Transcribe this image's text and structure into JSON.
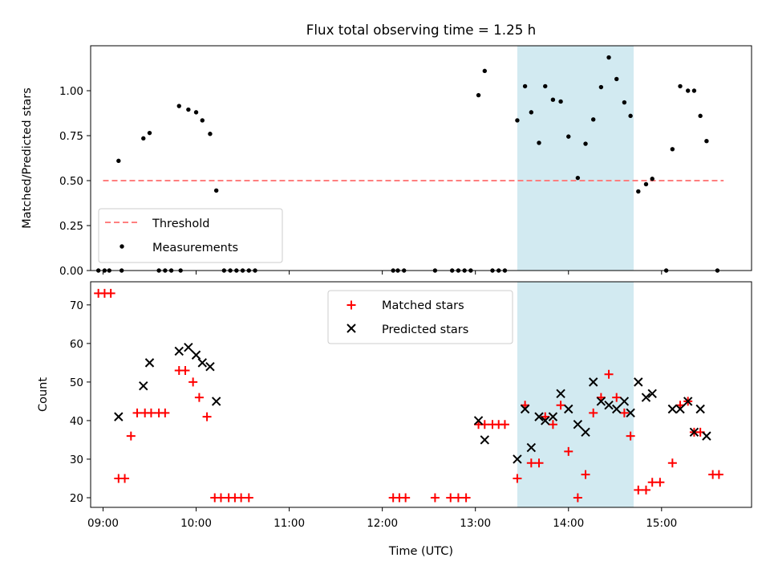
{
  "chart_data": [
    {
      "type": "scatter",
      "title": "Flux total observing time = 1.25 h",
      "xlabel": "",
      "ylabel": "Matched/Predicted stars",
      "xlim": [
        "08:52",
        "15:58"
      ],
      "ylim": [
        0,
        1.25
      ],
      "x_ticks": [
        "09:00",
        "10:00",
        "11:00",
        "12:00",
        "13:00",
        "14:00",
        "15:00"
      ],
      "y_ticks": [
        "0.00",
        "0.25",
        "0.50",
        "0.75",
        "1.00"
      ],
      "y_tick_values": [
        0,
        0.25,
        0.5,
        0.75,
        1.0
      ],
      "highlight_band": {
        "x_start": "13:27",
        "x_end": "14:42",
        "color": "#add8e6"
      },
      "legend_position": "lower-left",
      "grid": false,
      "threshold": {
        "name": "Threshold",
        "y": 0.5,
        "x_start": "09:00",
        "x_end": "15:40",
        "color": "#ff7f7f",
        "style": "dashed"
      },
      "series": [
        {
          "name": "Measurements",
          "marker": "dot",
          "color": "#000000",
          "points": [
            [
              "08:57",
              0
            ],
            [
              "09:01",
              0
            ],
            [
              "09:04",
              0
            ],
            [
              "09:12",
              0
            ],
            [
              "09:36",
              0
            ],
            [
              "09:40",
              0
            ],
            [
              "09:44",
              0
            ],
            [
              "09:50",
              0
            ],
            [
              "09:10",
              0.61
            ],
            [
              "09:26",
              0.735
            ],
            [
              "09:30",
              0.765
            ],
            [
              "09:49",
              0.915
            ],
            [
              "09:55",
              0.895
            ],
            [
              "10:00",
              0.88
            ],
            [
              "10:04",
              0.835
            ],
            [
              "10:09",
              0.76
            ],
            [
              "10:13",
              0.445
            ],
            [
              "10:18",
              0
            ],
            [
              "10:22",
              0
            ],
            [
              "10:26",
              0
            ],
            [
              "10:30",
              0
            ],
            [
              "10:34",
              0
            ],
            [
              "10:38",
              0
            ],
            [
              "12:07",
              0
            ],
            [
              "12:10",
              0
            ],
            [
              "12:14",
              0
            ],
            [
              "12:34",
              0
            ],
            [
              "12:45",
              0
            ],
            [
              "12:49",
              0
            ],
            [
              "12:53",
              0
            ],
            [
              "12:57",
              0
            ],
            [
              "13:02",
              0.975
            ],
            [
              "13:06",
              1.11
            ],
            [
              "13:11",
              0
            ],
            [
              "13:15",
              0
            ],
            [
              "13:19",
              0
            ],
            [
              "13:27",
              0.835
            ],
            [
              "13:32",
              1.025
            ],
            [
              "13:36",
              0.88
            ],
            [
              "13:41",
              0.71
            ],
            [
              "13:45",
              1.025
            ],
            [
              "13:50",
              0.95
            ],
            [
              "13:55",
              0.94
            ],
            [
              "14:00",
              0.745
            ],
            [
              "14:06",
              0.515
            ],
            [
              "14:11",
              0.705
            ],
            [
              "14:16",
              0.84
            ],
            [
              "14:21",
              1.02
            ],
            [
              "14:26",
              1.185
            ],
            [
              "14:31",
              1.065
            ],
            [
              "14:36",
              0.935
            ],
            [
              "14:40",
              0.86
            ],
            [
              "14:45",
              0.44
            ],
            [
              "14:50",
              0.48
            ],
            [
              "14:54",
              0.51
            ],
            [
              "15:03",
              0
            ],
            [
              "15:07",
              0.675
            ],
            [
              "15:12",
              1.025
            ],
            [
              "15:17",
              1.0
            ],
            [
              "15:21",
              1.0
            ],
            [
              "15:25",
              0.86
            ],
            [
              "15:29",
              0.72
            ],
            [
              "15:36",
              0
            ]
          ]
        }
      ]
    },
    {
      "type": "scatter",
      "title": "",
      "xlabel": "Time (UTC)",
      "ylabel": "Count",
      "xlim": [
        "08:52",
        "15:58"
      ],
      "ylim": [
        17.5,
        76
      ],
      "x_ticks": [
        "09:00",
        "10:00",
        "11:00",
        "12:00",
        "13:00",
        "14:00",
        "15:00"
      ],
      "y_ticks": [
        "20",
        "30",
        "40",
        "50",
        "60",
        "70"
      ],
      "y_tick_values": [
        20,
        30,
        40,
        50,
        60,
        70
      ],
      "highlight_band": {
        "x_start": "13:27",
        "x_end": "14:42",
        "color": "#add8e6"
      },
      "legend_position": "upper-center",
      "grid": false,
      "series": [
        {
          "name": "Matched stars",
          "marker": "plus",
          "color": "#ff0000",
          "points": [
            [
              "08:57",
              73
            ],
            [
              "09:01",
              73
            ],
            [
              "09:05",
              73
            ],
            [
              "09:10",
              25
            ],
            [
              "09:14",
              25
            ],
            [
              "09:18",
              36
            ],
            [
              "09:22",
              42
            ],
            [
              "09:27",
              42
            ],
            [
              "09:31",
              42
            ],
            [
              "09:36",
              42
            ],
            [
              "09:40",
              42
            ],
            [
              "09:49",
              53
            ],
            [
              "09:53",
              53
            ],
            [
              "09:58",
              50
            ],
            [
              "10:02",
              46
            ],
            [
              "10:07",
              41
            ],
            [
              "10:12",
              20
            ],
            [
              "10:16",
              20
            ],
            [
              "10:21",
              20
            ],
            [
              "10:25",
              20
            ],
            [
              "10:29",
              20
            ],
            [
              "10:34",
              20
            ],
            [
              "12:07",
              20
            ],
            [
              "12:11",
              20
            ],
            [
              "12:15",
              20
            ],
            [
              "12:34",
              20
            ],
            [
              "12:44",
              20
            ],
            [
              "12:49",
              20
            ],
            [
              "12:54",
              20
            ],
            [
              "13:02",
              39
            ],
            [
              "13:06",
              39
            ],
            [
              "13:11",
              39
            ],
            [
              "13:15",
              39
            ],
            [
              "13:19",
              39
            ],
            [
              "13:27",
              25
            ],
            [
              "13:32",
              44
            ],
            [
              "13:36",
              29
            ],
            [
              "13:41",
              29
            ],
            [
              "13:45",
              41
            ],
            [
              "13:50",
              39
            ],
            [
              "13:55",
              44
            ],
            [
              "14:00",
              32
            ],
            [
              "14:06",
              20
            ],
            [
              "14:11",
              26
            ],
            [
              "14:16",
              42
            ],
            [
              "14:21",
              46
            ],
            [
              "14:26",
              52
            ],
            [
              "14:31",
              46
            ],
            [
              "14:36",
              42
            ],
            [
              "14:40",
              36
            ],
            [
              "14:45",
              22
            ],
            [
              "14:50",
              22
            ],
            [
              "14:54",
              24
            ],
            [
              "14:59",
              24
            ],
            [
              "15:07",
              29
            ],
            [
              "15:12",
              44
            ],
            [
              "15:17",
              45
            ],
            [
              "15:21",
              37
            ],
            [
              "15:25",
              37
            ],
            [
              "15:33",
              26
            ],
            [
              "15:37",
              26
            ]
          ]
        },
        {
          "name": "Predicted stars",
          "marker": "x",
          "color": "#000000",
          "points": [
            [
              "09:10",
              41
            ],
            [
              "09:26",
              49
            ],
            [
              "09:30",
              55
            ],
            [
              "09:49",
              58
            ],
            [
              "09:55",
              59
            ],
            [
              "10:00",
              57
            ],
            [
              "10:04",
              55
            ],
            [
              "10:09",
              54
            ],
            [
              "10:13",
              45
            ],
            [
              "13:02",
              40
            ],
            [
              "13:06",
              35
            ],
            [
              "13:27",
              30
            ],
            [
              "13:32",
              43
            ],
            [
              "13:36",
              33
            ],
            [
              "13:41",
              41
            ],
            [
              "13:45",
              40
            ],
            [
              "13:50",
              41
            ],
            [
              "13:55",
              47
            ],
            [
              "14:00",
              43
            ],
            [
              "14:06",
              39
            ],
            [
              "14:11",
              37
            ],
            [
              "14:16",
              50
            ],
            [
              "14:21",
              45
            ],
            [
              "14:26",
              44
            ],
            [
              "14:31",
              43
            ],
            [
              "14:36",
              45
            ],
            [
              "14:40",
              42
            ],
            [
              "14:45",
              50
            ],
            [
              "14:50",
              46
            ],
            [
              "14:54",
              47
            ],
            [
              "15:07",
              43
            ],
            [
              "15:12",
              43
            ],
            [
              "15:17",
              45
            ],
            [
              "15:21",
              37
            ],
            [
              "15:25",
              43
            ],
            [
              "15:29",
              36
            ]
          ]
        }
      ]
    }
  ]
}
